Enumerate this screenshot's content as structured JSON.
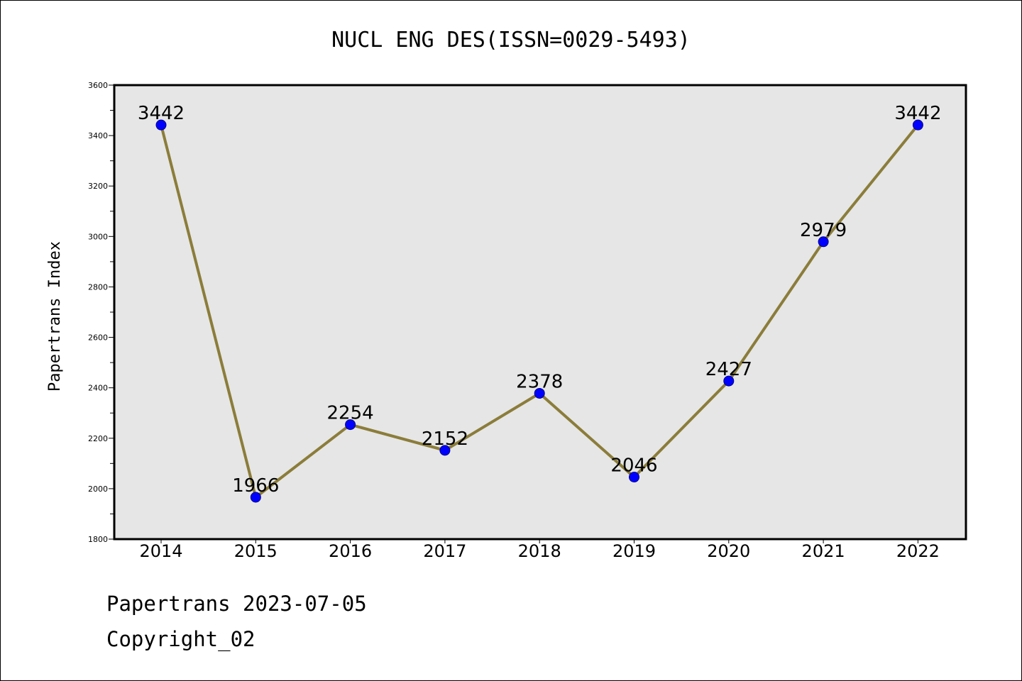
{
  "chart_data": {
    "type": "line",
    "title": "NUCL ENG DES(ISSN=0029-5493)",
    "xlabel": "",
    "ylabel": "Papertrans Index",
    "categories": [
      "2014",
      "2015",
      "2016",
      "2017",
      "2018",
      "2019",
      "2020",
      "2021",
      "2022"
    ],
    "series": [
      {
        "values": [
          3442,
          1966,
          2254,
          2152,
          2378,
          2046,
          2427,
          2979,
          3442
        ]
      }
    ],
    "data_labels": [
      "3442",
      "1966",
      "2254",
      "2152",
      "2378",
      "2046",
      "2427",
      "2979",
      "3442"
    ],
    "ylim": [
      1800,
      3600
    ],
    "yticks": [
      "1800",
      "2000",
      "2200",
      "2400",
      "2600",
      "2800",
      "3000",
      "3200",
      "3400",
      "3600"
    ],
    "grid": false,
    "line_color": "#8B7D3A",
    "marker_color": "#0000FF",
    "plot_background": "#E6E6E6"
  },
  "footer": {
    "line1": "Papertrans 2023-07-05",
    "line2": "Copyright_02"
  }
}
